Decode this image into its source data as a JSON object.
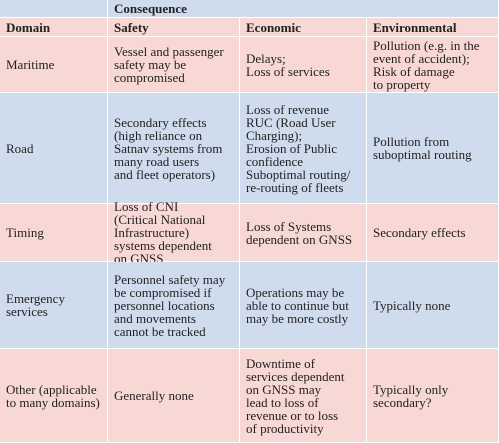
{
  "table": {
    "group_header": "Consequence",
    "columns": [
      "Domain",
      "Safety",
      "Economic",
      "Environmental"
    ],
    "rows": [
      [
        [
          "Maritime"
        ],
        [
          "Vessel and passenger",
          "safety may be",
          "compromised"
        ],
        [
          "Delays;",
          "Loss of services"
        ],
        [
          "Pollution (e.g. in the",
          "event of accident);",
          "Risk of damage",
          "to property"
        ]
      ],
      [
        [
          "Road"
        ],
        [
          "Secondary effects",
          "(high reliance on",
          "Satnav systems from",
          "many road users",
          "and fleet operators)"
        ],
        [
          "Loss of revenue",
          "RUC (Road User",
          "Charging);",
          "Erosion of Public",
          "confidence",
          "Suboptimal routing/",
          "re-routing of fleets"
        ],
        [
          "Pollution from",
          "suboptimal routing"
        ]
      ],
      [
        [
          "Timing"
        ],
        [
          "Loss of CNI",
          "(Critical National",
          "Infrastructure)",
          "systems dependent",
          "on GNSS"
        ],
        [
          "Loss of Systems",
          "dependent on GNSS"
        ],
        [
          "Secondary effects"
        ]
      ],
      [
        [
          "Emergency",
          "services"
        ],
        [
          "Personnel safety may",
          "be compromised if",
          "personnel locations",
          "and movements",
          "cannot be tracked"
        ],
        [
          "Operations may be",
          "able to continue but",
          "may be more costly"
        ],
        [
          "Typically none"
        ]
      ],
      [
        [
          "Other (applicable",
          "to many domains)"
        ],
        [
          "Generally none"
        ],
        [
          "Downtime of",
          "services dependent",
          "on GNSS may",
          "lead to loss of",
          "revenue or to loss",
          "of productivity"
        ],
        [
          "Typically only",
          "secondary?"
        ]
      ]
    ]
  }
}
